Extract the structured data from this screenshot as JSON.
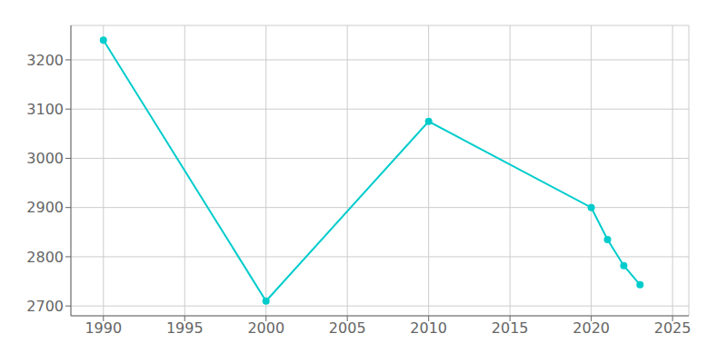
{
  "chart_data": {
    "type": "line",
    "x": [
      1990,
      2000,
      2010,
      2020,
      2021,
      2022,
      2023
    ],
    "values": [
      3240,
      2710,
      3075,
      2900,
      2835,
      2782,
      2743
    ],
    "color": "#00CCCC",
    "marker": "circle",
    "xlim": [
      1988,
      2026
    ],
    "ylim": [
      2680,
      3270
    ],
    "xticks": [
      1990,
      1995,
      2000,
      2005,
      2010,
      2015,
      2020,
      2025
    ],
    "yticks": [
      2700,
      2800,
      2900,
      3000,
      3100,
      3200
    ],
    "grid": true
  }
}
